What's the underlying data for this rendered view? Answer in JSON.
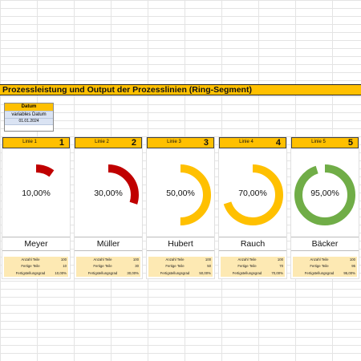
{
  "title": "Prozessleistung und Output der Prozesslinien (Ring-Segment)",
  "date_box": {
    "header": "Datum",
    "label": "variables Datum",
    "value": "01.01.2024"
  },
  "colors": {
    "accent": "#ffc000",
    "red": "#c00000",
    "green": "#70ad47",
    "track": "#ffffff"
  },
  "cards": [
    {
      "line": "Linie 1",
      "number": "1",
      "percent_label": "10,00%",
      "fraction": 0.1,
      "ring_color": "#c00000",
      "name": "Meyer",
      "stats": [
        {
          "label": "Anzahl Teile",
          "value": "100"
        },
        {
          "label": "Fertige Teile",
          "value": "10"
        },
        {
          "label": "Fertigstellungsgrad",
          "value": "10,00%"
        }
      ]
    },
    {
      "line": "Linie 2",
      "number": "2",
      "percent_label": "30,00%",
      "fraction": 0.3,
      "ring_color": "#c00000",
      "name": "Müller",
      "stats": [
        {
          "label": "Anzahl Teile",
          "value": "100"
        },
        {
          "label": "Fertige Teile",
          "value": "30"
        },
        {
          "label": "Fertigstellungsgrad",
          "value": "30,00%"
        }
      ]
    },
    {
      "line": "Linie 3",
      "number": "3",
      "percent_label": "50,00%",
      "fraction": 0.5,
      "ring_color": "#ffc000",
      "name": "Hubert",
      "stats": [
        {
          "label": "Anzahl Teile",
          "value": "100"
        },
        {
          "label": "Fertige Teile",
          "value": "50"
        },
        {
          "label": "Fertigstellungsgrad",
          "value": "50,00%"
        }
      ]
    },
    {
      "line": "Linie 4",
      "number": "4",
      "percent_label": "70,00%",
      "fraction": 0.7,
      "ring_color": "#ffc000",
      "name": "Rauch",
      "stats": [
        {
          "label": "Anzahl Teile",
          "value": "100"
        },
        {
          "label": "Fertige Teile",
          "value": "70"
        },
        {
          "label": "Fertigstellungsgrad",
          "value": "70,00%"
        }
      ]
    },
    {
      "line": "Linie 5",
      "number": "5",
      "percent_label": "95,00%",
      "fraction": 0.95,
      "ring_color": "#70ad47",
      "name": "Bäcker",
      "stats": [
        {
          "label": "Anzahl Teile",
          "value": "100"
        },
        {
          "label": "Fertige Teile",
          "value": "95"
        },
        {
          "label": "Fertigstellungsgrad",
          "value": "95,00%"
        }
      ]
    }
  ]
}
